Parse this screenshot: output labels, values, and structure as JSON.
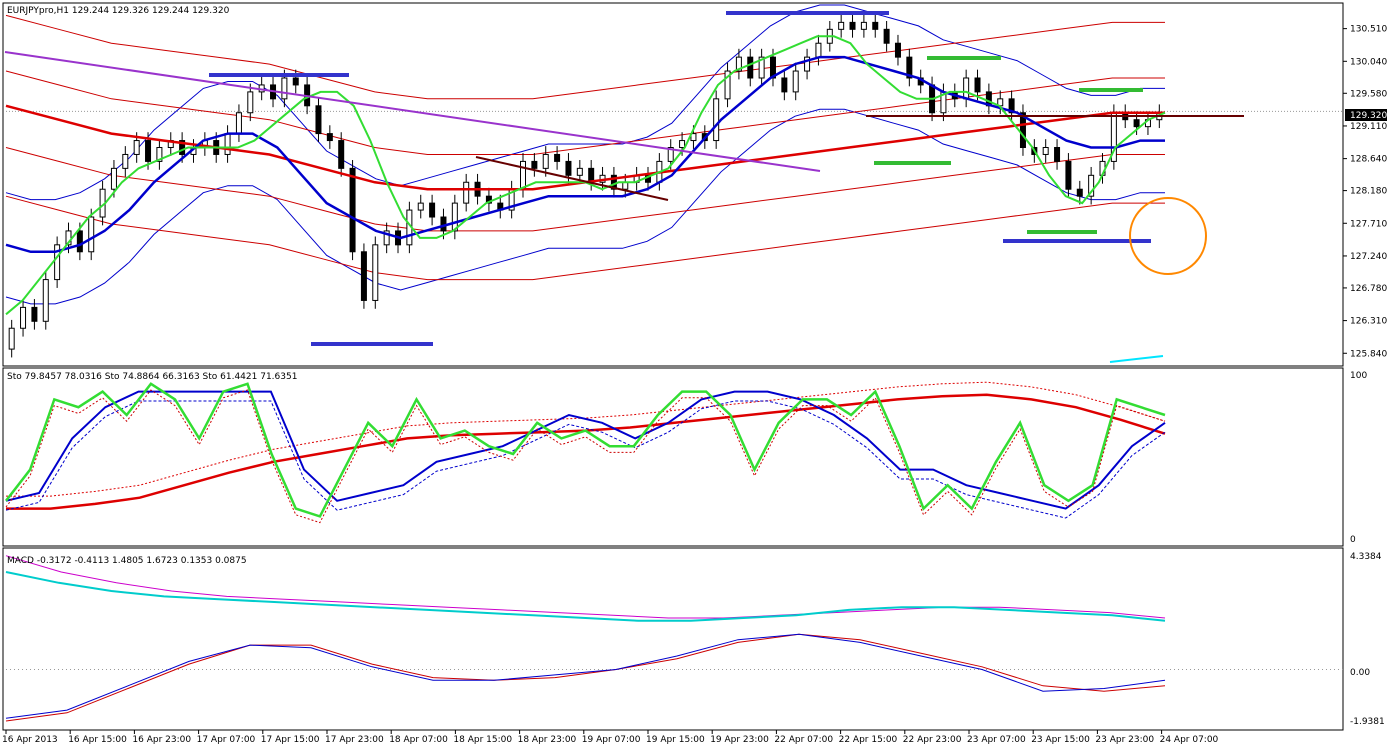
{
  "chart": {
    "header": "EURJPYpro,H1  129.244 129.326 129.244 129.320",
    "current_price": "129.320",
    "price_axis": [
      "130.510",
      "130.040",
      "129.580",
      "129.110",
      "128.640",
      "128.180",
      "127.710",
      "127.240",
      "126.780",
      "126.310",
      "125.840"
    ],
    "stochastic_header": "Sto 79.8457 78.0316  Sto 74.8864 66.3163  Sto 61.4421 71.6351",
    "stochastic_axis": [
      "100",
      "0"
    ],
    "macd_header": "MACD -0.3172 -0.4113 1.4805 1.6723 0.1353 0.0875",
    "macd_axis": [
      "4.3384",
      "0.00",
      "-1.9381"
    ],
    "time_axis": [
      "16 Apr 2013",
      "16 Apr 15:00",
      "16 Apr 23:00",
      "17 Apr 07:00",
      "17 Apr 15:00",
      "17 Apr 23:00",
      "18 Apr 07:00",
      "18 Apr 15:00",
      "18 Apr 23:00",
      "19 Apr 07:00",
      "19 Apr 15:00",
      "19 Apr 23:00",
      "22 Apr 07:00",
      "22 Apr 15:00",
      "22 Apr 23:00",
      "23 Apr 07:00",
      "23 Apr 15:00",
      "23 Apr 23:00",
      "24 Apr 07:00"
    ],
    "colors": {
      "background": "#ffffff",
      "border": "#000000",
      "bollinger_outer": "#cc0000",
      "bollinger_inner": "#0000cc",
      "ema_fast": "#33dd33",
      "ema_mid": "#0000cc",
      "ema_slow": "#dd0000",
      "trendline_purple": "#9933cc",
      "trendline_brown": "#660000",
      "support_bars": "#3333cc",
      "resistance_bars": "#33bb33",
      "circle": "#ff8800",
      "macd_main": "#00cccc",
      "macd_signal": "#cc00cc"
    }
  },
  "chart_data": [
    {
      "type": "candlestick",
      "title": "EURJPYpro,H1",
      "y_ticks": [
        130.51,
        130.04,
        129.58,
        129.11,
        128.64,
        128.18,
        127.71,
        127.24,
        126.78,
        126.31,
        125.84
      ],
      "ylim": [
        125.7,
        130.85
      ],
      "last_price": 129.32,
      "x_ticks": [
        "16 Apr 2013",
        "16 Apr 15:00",
        "16 Apr 23:00",
        "17 Apr 07:00",
        "17 Apr 15:00",
        "17 Apr 23:00",
        "18 Apr 07:00",
        "18 Apr 15:00",
        "18 Apr 23:00",
        "19 Apr 07:00",
        "19 Apr 15:00",
        "19 Apr 23:00",
        "22 Apr 07:00",
        "22 Apr 15:00",
        "22 Apr 23:00",
        "23 Apr 07:00",
        "23 Apr 15:00",
        "23 Apr 23:00",
        "24 Apr 07:00"
      ],
      "close": [
        126.2,
        126.5,
        126.3,
        126.9,
        127.4,
        127.6,
        127.3,
        127.8,
        128.2,
        128.5,
        128.7,
        128.9,
        128.6,
        128.8,
        128.9,
        128.7,
        128.8,
        128.9,
        128.7,
        129.0,
        129.3,
        129.6,
        129.7,
        129.5,
        129.8,
        129.7,
        129.4,
        129.0,
        128.9,
        128.5,
        127.3,
        126.6,
        127.4,
        127.6,
        127.4,
        127.9,
        128.0,
        127.8,
        127.6,
        128.0,
        128.3,
        128.1,
        128.0,
        127.9,
        128.2,
        128.6,
        128.5,
        128.7,
        128.6,
        128.4,
        128.5,
        128.3,
        128.4,
        128.2,
        128.3,
        128.4,
        128.3,
        128.6,
        128.8,
        128.9,
        129.0,
        128.9,
        129.5,
        129.9,
        130.1,
        129.8,
        130.1,
        129.8,
        129.6,
        129.9,
        130.1,
        130.3,
        130.5,
        130.6,
        130.5,
        130.6,
        130.5,
        130.3,
        130.1,
        129.8,
        129.7,
        129.3,
        129.6,
        129.5,
        129.8,
        129.6,
        129.4,
        129.5,
        129.3,
        128.8,
        128.7,
        128.8,
        128.6,
        128.2,
        128.1,
        128.4,
        128.6,
        129.3,
        129.2,
        129.1,
        129.2,
        129.3
      ],
      "open": [
        125.9,
        126.2,
        126.5,
        126.3,
        126.9,
        127.4,
        127.6,
        127.3,
        127.8,
        128.2,
        128.5,
        128.7,
        128.9,
        128.6,
        128.8,
        128.9,
        128.7,
        128.8,
        128.9,
        128.7,
        129.0,
        129.3,
        129.6,
        129.7,
        129.5,
        129.8,
        129.7,
        129.4,
        129.0,
        128.9,
        128.5,
        127.3,
        126.6,
        127.4,
        127.6,
        127.4,
        127.9,
        128.0,
        127.8,
        127.6,
        128.0,
        128.3,
        128.1,
        128.0,
        127.9,
        128.2,
        128.6,
        128.5,
        128.7,
        128.6,
        128.4,
        128.5,
        128.3,
        128.4,
        128.2,
        128.3,
        128.4,
        128.3,
        128.6,
        128.8,
        128.9,
        129.0,
        128.9,
        129.5,
        129.9,
        130.1,
        129.8,
        130.1,
        129.8,
        129.6,
        129.9,
        130.1,
        130.3,
        130.5,
        130.6,
        130.5,
        130.6,
        130.5,
        130.3,
        130.1,
        129.8,
        129.7,
        129.3,
        129.6,
        129.5,
        129.8,
        129.6,
        129.4,
        129.5,
        129.3,
        128.8,
        128.7,
        128.8,
        128.6,
        128.2,
        128.1,
        128.4,
        128.6,
        129.3,
        129.2,
        129.1,
        129.2
      ],
      "series": [
        {
          "name": "EMA fast",
          "color": "#33dd33",
          "values": [
            126.4,
            126.6,
            126.9,
            127.2,
            127.5,
            127.8,
            128.0,
            128.3,
            128.5,
            128.6,
            128.7,
            128.8,
            128.8,
            128.8,
            128.8,
            128.9,
            129.1,
            129.3,
            129.5,
            129.6,
            129.6,
            129.4,
            128.9,
            128.3,
            127.8,
            127.5,
            127.5,
            127.6,
            127.8,
            128.0,
            128.1,
            128.2,
            128.3,
            128.3,
            128.3,
            128.3,
            128.2,
            128.3,
            128.3,
            128.4,
            128.5,
            128.8,
            129.3,
            129.7,
            129.9,
            130.0,
            130.1,
            130.2,
            130.3,
            130.4,
            130.4,
            130.3,
            130.0,
            129.8,
            129.6,
            129.5,
            129.5,
            129.6,
            129.6,
            129.5,
            129.4,
            129.1,
            128.8,
            128.4,
            128.1,
            128.0,
            128.3,
            128.8,
            129.0,
            129.2,
            129.3
          ]
        },
        {
          "name": "EMA mid",
          "color": "#0000cc",
          "values": [
            127.4,
            127.3,
            127.3,
            127.4,
            127.6,
            127.9,
            128.3,
            128.6,
            128.9,
            129.0,
            129.0,
            128.8,
            128.4,
            128.0,
            127.8,
            127.6,
            127.5,
            127.6,
            127.7,
            127.8,
            127.9,
            128.0,
            128.1,
            128.1,
            128.1,
            128.1,
            128.2,
            128.4,
            128.8,
            129.2,
            129.5,
            129.8,
            130.0,
            130.1,
            130.1,
            130.0,
            129.9,
            129.8,
            129.6,
            129.5,
            129.4,
            129.3,
            129.1,
            128.9,
            128.8,
            128.8,
            128.9,
            128.9
          ]
        },
        {
          "name": "EMA slow",
          "color": "#dd0000",
          "values": [
            129.4,
            129.2,
            129.0,
            128.9,
            128.8,
            128.7,
            128.5,
            128.3,
            128.2,
            128.2,
            128.2,
            128.3,
            128.4,
            128.5,
            128.6,
            128.7,
            128.8,
            128.9,
            129.0,
            129.1,
            129.2,
            129.3,
            129.3
          ]
        }
      ]
    },
    {
      "type": "line",
      "title": "Sto",
      "ylim": [
        0,
        100
      ],
      "series": [
        {
          "name": "Sto fast",
          "color": "#33dd33",
          "values": [
            20,
            40,
            85,
            80,
            90,
            75,
            95,
            85,
            60,
            90,
            95,
            50,
            15,
            10,
            40,
            70,
            55,
            85,
            60,
            65,
            55,
            50,
            70,
            60,
            65,
            55,
            55,
            75,
            90,
            90,
            75,
            40,
            70,
            85,
            85,
            75,
            90,
            55,
            15,
            30,
            15,
            45,
            70,
            30,
            20,
            30,
            85,
            80,
            75
          ]
        },
        {
          "name": "Sto mid",
          "color": "#0000cc",
          "values": [
            20,
            25,
            60,
            80,
            90,
            90,
            90,
            90,
            90,
            40,
            20,
            25,
            30,
            45,
            50,
            55,
            65,
            75,
            70,
            60,
            70,
            85,
            90,
            90,
            85,
            75,
            60,
            40,
            40,
            30,
            25,
            20,
            15,
            30,
            55,
            70
          ]
        },
        {
          "name": "Sto slow",
          "color": "#dd0000",
          "values": [
            15,
            15,
            18,
            22,
            30,
            38,
            45,
            50,
            55,
            60,
            62,
            63,
            64,
            65,
            67,
            70,
            73,
            76,
            79,
            82,
            85,
            87,
            88,
            85,
            80,
            72,
            63
          ]
        }
      ]
    },
    {
      "type": "line",
      "title": "MACD",
      "ylim": [
        -1.9381,
        4.3384
      ],
      "series": [
        {
          "name": "MACD main",
          "color": "#00cccc",
          "values": [
            3.6,
            3.2,
            2.9,
            2.7,
            2.6,
            2.5,
            2.4,
            2.3,
            2.2,
            2.1,
            2.0,
            1.9,
            1.8,
            1.8,
            1.9,
            2.0,
            2.2,
            2.3,
            2.3,
            2.2,
            2.1,
            2.0,
            1.8
          ]
        },
        {
          "name": "MACD signal",
          "color": "#cc00cc",
          "values": [
            4.2,
            3.6,
            3.2,
            2.9,
            2.7,
            2.6,
            2.5,
            2.4,
            2.3,
            2.2,
            2.1,
            2.0,
            1.9,
            1.9,
            2.0,
            2.1,
            2.2,
            2.3,
            2.3,
            2.2,
            2.1,
            1.9
          ]
        },
        {
          "name": "OsMA a",
          "color": "#0000cc",
          "values": [
            -1.8,
            -1.5,
            -0.6,
            0.3,
            0.9,
            0.8,
            0.1,
            -0.4,
            -0.4,
            -0.2,
            0.0,
            0.5,
            1.1,
            1.3,
            1.0,
            0.5,
            0.0,
            -0.8,
            -0.7,
            -0.4
          ]
        },
        {
          "name": "OsMA b",
          "color": "#cc0000",
          "values": [
            -1.9,
            -1.6,
            -0.7,
            0.2,
            0.9,
            0.9,
            0.2,
            -0.3,
            -0.4,
            -0.3,
            0.0,
            0.4,
            1.0,
            1.3,
            1.1,
            0.6,
            0.1,
            -0.6,
            -0.8,
            -0.6
          ]
        }
      ]
    }
  ]
}
